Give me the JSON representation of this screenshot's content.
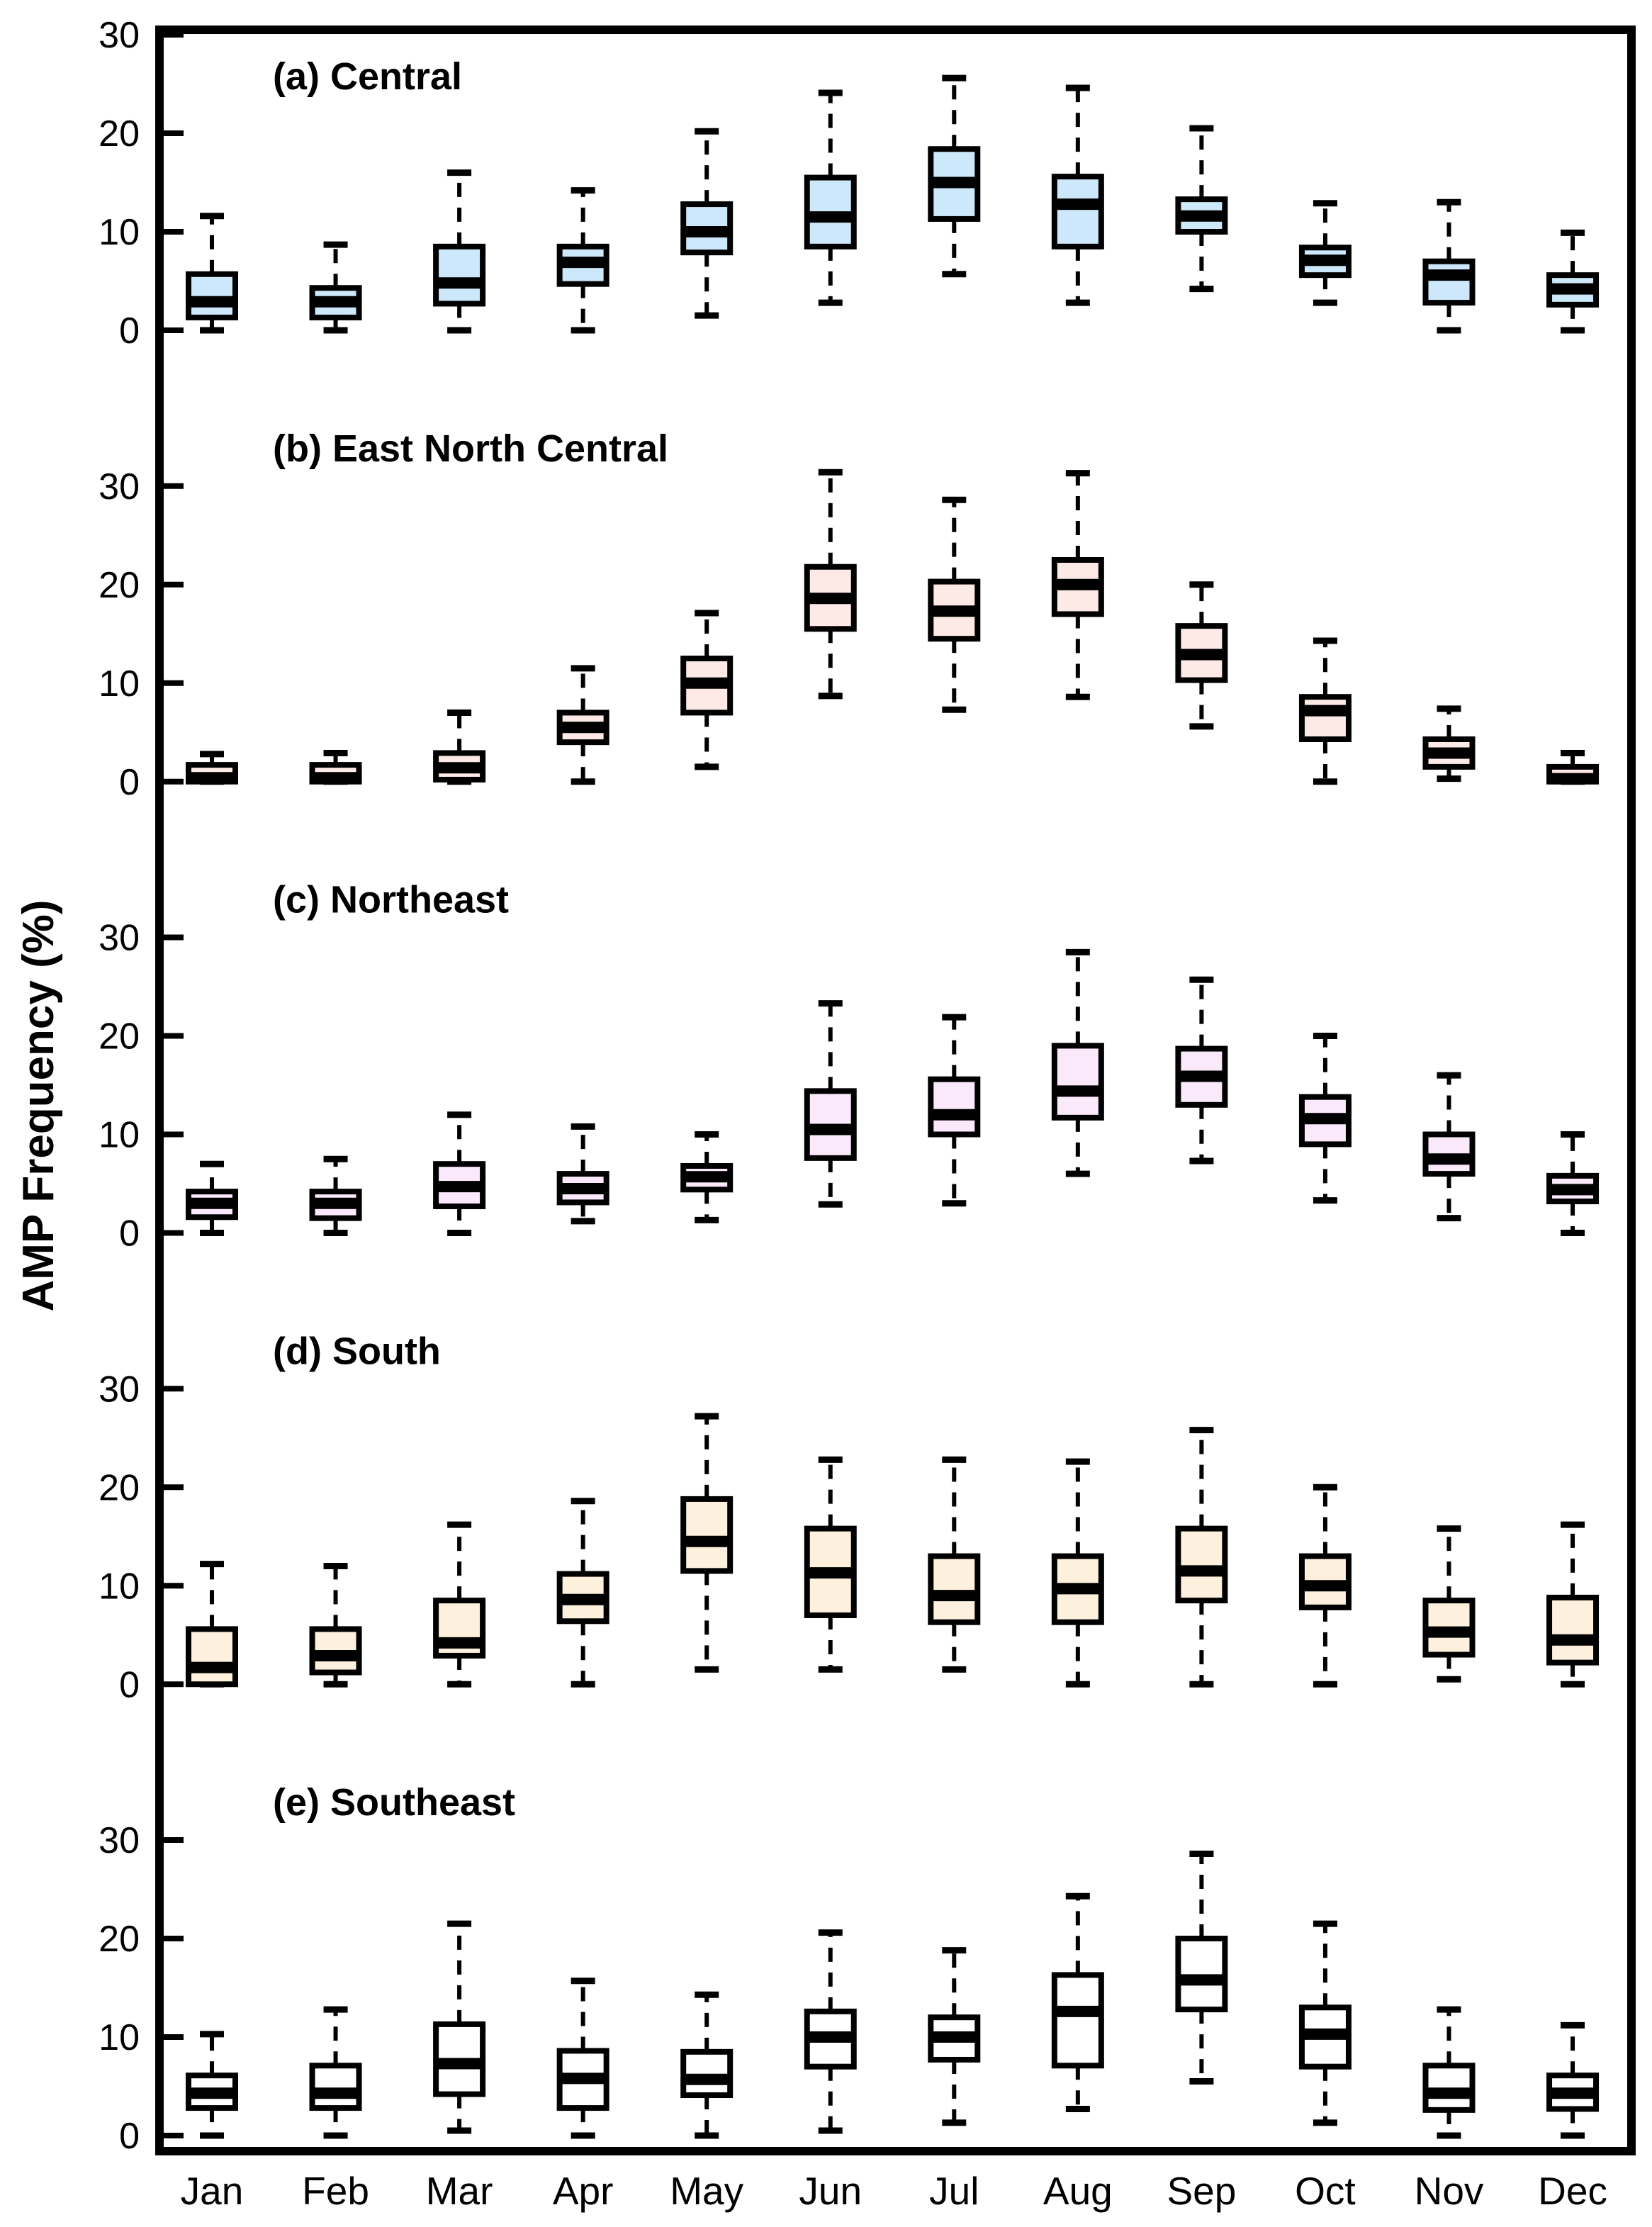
{
  "chart_data": {
    "type": "box",
    "title": "",
    "ylabel": "AMP Frequency (%)",
    "xlabel": "",
    "categories": [
      "Jan",
      "Feb",
      "Mar",
      "Apr",
      "May",
      "Jun",
      "Jul",
      "Aug",
      "Sep",
      "Oct",
      "Nov",
      "Dec"
    ],
    "yticks": [
      0,
      10,
      20,
      30
    ],
    "ylim_per_panel": [
      -2.5,
      33
    ],
    "grid": false,
    "legend": "none",
    "stat_labels": [
      "whisker_low",
      "q1",
      "median",
      "q3",
      "whisker_high"
    ],
    "panels": [
      {
        "label": "(a) Central",
        "fill": "#cce8fa",
        "stats": [
          [
            0,
            1.3,
            2.9,
            5.7,
            11.6
          ],
          [
            0,
            1.3,
            2.9,
            4.3,
            8.7
          ],
          [
            0,
            2.7,
            4.8,
            8.5,
            16.0
          ],
          [
            0,
            4.7,
            6.9,
            8.5,
            14.2
          ],
          [
            1.5,
            7.9,
            10.0,
            12.8,
            20.2
          ],
          [
            2.8,
            8.5,
            11.5,
            15.5,
            24.1
          ],
          [
            5.7,
            11.3,
            15.0,
            18.4,
            25.6
          ],
          [
            2.8,
            8.5,
            12.8,
            15.6,
            24.6
          ],
          [
            4.2,
            10.0,
            11.6,
            13.3,
            20.5
          ],
          [
            2.8,
            5.6,
            7.1,
            8.4,
            12.9
          ],
          [
            0,
            2.8,
            5.6,
            7.0,
            13.0
          ],
          [
            0,
            2.6,
            4.2,
            5.6,
            9.9
          ]
        ]
      },
      {
        "label": "(b) East North Central",
        "fill": "#fdeae7",
        "stats": [
          [
            0,
            0,
            0.4,
            1.7,
            2.8
          ],
          [
            0,
            0,
            0.4,
            1.7,
            2.9
          ],
          [
            0,
            0.2,
            1.4,
            2.9,
            7.0
          ],
          [
            0,
            4.0,
            5.5,
            7.0,
            11.5
          ],
          [
            1.5,
            7.0,
            10.0,
            12.5,
            17.1
          ],
          [
            8.7,
            15.5,
            18.6,
            21.8,
            31.4
          ],
          [
            7.3,
            14.5,
            17.3,
            20.3,
            28.6
          ],
          [
            8.6,
            17.0,
            20.0,
            22.5,
            31.3
          ],
          [
            5.6,
            10.3,
            12.9,
            15.8,
            20.0
          ],
          [
            0,
            4.3,
            7.2,
            8.6,
            14.3
          ],
          [
            0.3,
            1.5,
            2.9,
            4.3,
            7.4
          ],
          [
            0,
            0,
            0.3,
            1.5,
            2.9
          ]
        ]
      },
      {
        "label": "(c) Northeast",
        "fill": "#fae9fb",
        "stats": [
          [
            0,
            1.6,
            3.0,
            4.2,
            7.0
          ],
          [
            0,
            1.5,
            3.0,
            4.2,
            7.5
          ],
          [
            0,
            2.7,
            4.7,
            7.0,
            12.0
          ],
          [
            1.2,
            3.1,
            4.5,
            6.0,
            10.8
          ],
          [
            1.3,
            4.4,
            5.7,
            6.8,
            10.0
          ],
          [
            2.9,
            7.6,
            10.5,
            14.4,
            23.3
          ],
          [
            3.0,
            10.0,
            12.0,
            15.6,
            21.9
          ],
          [
            6.0,
            11.7,
            14.4,
            19.0,
            28.5
          ],
          [
            7.3,
            13.0,
            15.9,
            18.7,
            25.7
          ],
          [
            3.3,
            9.0,
            11.6,
            13.8,
            20.0
          ],
          [
            1.5,
            6.0,
            7.5,
            10.0,
            16.0
          ],
          [
            0,
            3.2,
            4.4,
            5.8,
            10.0
          ]
        ]
      },
      {
        "label": "(d) South",
        "fill": "#fdf0dc",
        "stats": [
          [
            0,
            0,
            1.7,
            5.6,
            12.2
          ],
          [
            0,
            1.2,
            2.9,
            5.6,
            12.0
          ],
          [
            0,
            2.9,
            4.2,
            8.5,
            16.2
          ],
          [
            0,
            6.4,
            8.6,
            11.2,
            18.6
          ],
          [
            1.5,
            11.5,
            14.5,
            18.8,
            27.2
          ],
          [
            1.5,
            7.0,
            11.3,
            15.8,
            22.8
          ],
          [
            1.5,
            6.3,
            9.0,
            13.0,
            22.8
          ],
          [
            0,
            6.3,
            9.7,
            13.0,
            22.6
          ],
          [
            0,
            8.5,
            11.5,
            15.8,
            25.8
          ],
          [
            0,
            7.8,
            10.0,
            13.0,
            20.0
          ],
          [
            0.5,
            3.0,
            5.3,
            8.5,
            15.8
          ],
          [
            0,
            2.2,
            4.5,
            8.8,
            16.2
          ]
        ]
      },
      {
        "label": "(e) Southeast",
        "fill": "#ffffff",
        "stats": [
          [
            0,
            2.8,
            4.3,
            6.1,
            10.3
          ],
          [
            0,
            2.8,
            4.3,
            7.1,
            12.8
          ],
          [
            0.5,
            4.2,
            7.3,
            11.3,
            21.5
          ],
          [
            0,
            2.8,
            5.8,
            8.6,
            15.7
          ],
          [
            0,
            4.1,
            5.7,
            8.5,
            14.3
          ],
          [
            0.5,
            7.0,
            10.0,
            12.6,
            20.6
          ],
          [
            1.3,
            7.7,
            10.0,
            12.0,
            18.8
          ],
          [
            2.7,
            7.1,
            12.6,
            16.3,
            24.3
          ],
          [
            5.5,
            12.8,
            15.8,
            20.0,
            28.6
          ],
          [
            1.3,
            7.0,
            10.3,
            13.0,
            21.5
          ],
          [
            0,
            2.6,
            4.3,
            7.1,
            12.8
          ],
          [
            0,
            2.7,
            4.3,
            6.1,
            11.2
          ]
        ]
      }
    ],
    "colors": {
      "line": "#000000",
      "background": "#ffffff",
      "panel_fills": [
        "#cce8fa",
        "#fdeae7",
        "#fae9fb",
        "#fdf0dc",
        "#ffffff"
      ]
    }
  }
}
